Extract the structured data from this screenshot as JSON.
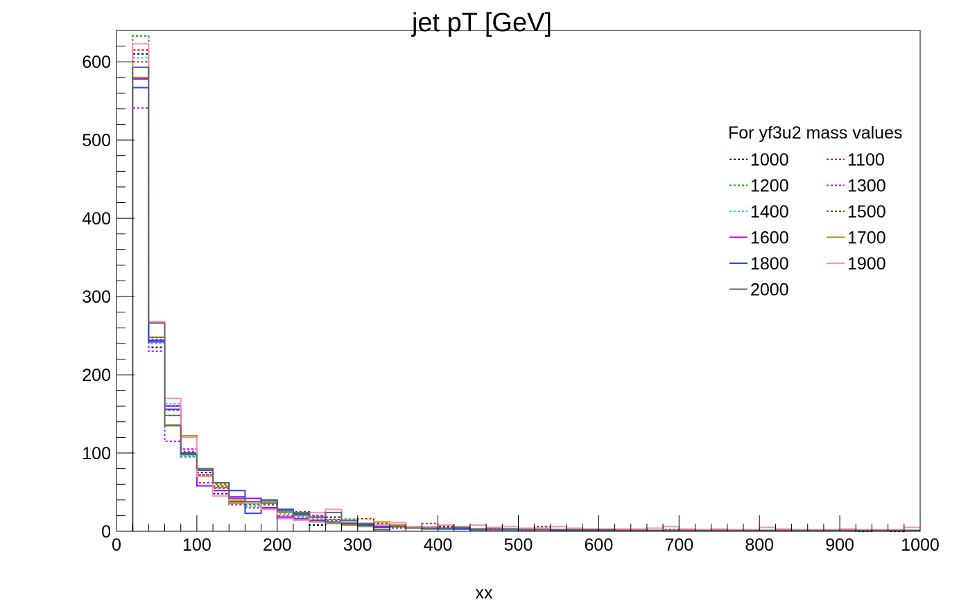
{
  "chart_data": {
    "type": "line",
    "subtype": "step-histogram",
    "title": "jet pT [GeV]",
    "xlabel": "xx",
    "ylabel": "",
    "xlim": [
      0,
      1000
    ],
    "ylim": [
      0,
      640
    ],
    "x_ticks": [
      "0",
      "100",
      "200",
      "300",
      "400",
      "500",
      "600",
      "700",
      "800",
      "900",
      "1000"
    ],
    "y_ticks": [
      "0",
      "100",
      "200",
      "300",
      "400",
      "500",
      "600"
    ],
    "grid": false,
    "legend": {
      "title": "For yf3u2 mass values",
      "placement": "top-right",
      "columns": 2
    },
    "bin_edges": [
      20,
      40,
      60,
      80,
      100,
      120,
      140,
      160,
      180,
      200,
      220,
      240,
      260,
      280,
      300,
      320,
      340,
      360,
      380,
      400,
      420,
      440,
      460,
      480,
      500,
      520,
      540,
      560,
      580,
      600,
      620,
      640,
      660,
      680,
      700,
      720,
      740,
      760,
      780,
      800,
      820,
      840,
      860,
      880,
      900,
      920,
      940,
      960,
      980,
      1000
    ],
    "series": [
      {
        "name": "1000",
        "color": "#00008b",
        "style": "dotted",
        "values": [
          610,
          235,
          160,
          100,
          75,
          48,
          40,
          35,
          28,
          18,
          22,
          8,
          18,
          14,
          10,
          5,
          6,
          5,
          3,
          6,
          4,
          2,
          3,
          2,
          2,
          2,
          1,
          2,
          1,
          1,
          2,
          1,
          1,
          1,
          1,
          1,
          1,
          1,
          1,
          1,
          1,
          1,
          1,
          1,
          1,
          0,
          1,
          0,
          1
        ]
      },
      {
        "name": "1100",
        "color": "#e00000",
        "style": "dotted",
        "values": [
          615,
          245,
          155,
          105,
          72,
          58,
          38,
          36,
          30,
          28,
          25,
          20,
          15,
          12,
          16,
          10,
          8,
          5,
          6,
          5,
          4,
          3,
          3,
          2,
          2,
          6,
          2,
          4,
          2,
          2,
          1,
          2,
          1,
          2,
          1,
          1,
          1,
          2,
          1,
          1,
          1,
          1,
          1,
          1,
          1,
          1,
          1,
          1,
          1
        ]
      },
      {
        "name": "1200",
        "color": "#00a000",
        "style": "dotted",
        "values": [
          633,
          248,
          148,
          95,
          70,
          60,
          38,
          34,
          36,
          26,
          20,
          18,
          12,
          14,
          8,
          7,
          6,
          6,
          4,
          3,
          3,
          3,
          2,
          2,
          1,
          2,
          2,
          2,
          1,
          1,
          1,
          1,
          1,
          1,
          1,
          1,
          1,
          1,
          1,
          1,
          1,
          1,
          1,
          1,
          1,
          1,
          1,
          1,
          1
        ]
      },
      {
        "name": "1300",
        "color": "#e000e0",
        "style": "dotted",
        "values": [
          541,
          230,
          115,
          105,
          62,
          55,
          34,
          30,
          28,
          20,
          18,
          20,
          12,
          10,
          8,
          6,
          4,
          5,
          4,
          4,
          3,
          3,
          2,
          2,
          2,
          2,
          2,
          1,
          1,
          1,
          1,
          1,
          1,
          1,
          1,
          1,
          1,
          1,
          1,
          1,
          1,
          1,
          1,
          1,
          1,
          1,
          1,
          1,
          1
        ]
      },
      {
        "name": "1400",
        "color": "#00d8d8",
        "style": "dotted",
        "values": [
          605,
          240,
          163,
          96,
          78,
          52,
          36,
          32,
          30,
          22,
          18,
          16,
          10,
          16,
          10,
          8,
          6,
          5,
          4,
          4,
          3,
          2,
          2,
          2,
          2,
          2,
          1,
          1,
          1,
          1,
          1,
          2,
          1,
          1,
          1,
          1,
          1,
          1,
          1,
          1,
          1,
          1,
          1,
          2,
          1,
          1,
          1,
          1,
          1
        ]
      },
      {
        "name": "1500",
        "color": "#8b4513",
        "style": "dotted",
        "values": [
          600,
          248,
          148,
          102,
          72,
          56,
          38,
          38,
          34,
          24,
          22,
          18,
          14,
          12,
          10,
          8,
          6,
          6,
          10,
          5,
          4,
          3,
          2,
          2,
          2,
          2,
          2,
          2,
          1,
          1,
          1,
          1,
          1,
          1,
          1,
          1,
          1,
          1,
          1,
          1,
          1,
          1,
          1,
          1,
          1,
          1,
          1,
          1,
          1
        ]
      },
      {
        "name": "1600",
        "color": "#b000ff",
        "style": "solid",
        "values": [
          578,
          244,
          160,
          98,
          58,
          52,
          44,
          42,
          30,
          18,
          16,
          14,
          12,
          10,
          8,
          6,
          6,
          4,
          4,
          4,
          3,
          2,
          2,
          2,
          2,
          2,
          2,
          1,
          1,
          1,
          1,
          1,
          1,
          1,
          1,
          1,
          1,
          1,
          1,
          1,
          1,
          1,
          1,
          1,
          1,
          1,
          1,
          1,
          1
        ]
      },
      {
        "name": "1700",
        "color": "#9a9a00",
        "style": "solid",
        "values": [
          580,
          268,
          136,
          122,
          80,
          56,
          36,
          36,
          38,
          24,
          20,
          12,
          10,
          8,
          6,
          12,
          8,
          5,
          4,
          3,
          3,
          2,
          2,
          2,
          2,
          2,
          1,
          1,
          1,
          1,
          1,
          1,
          1,
          1,
          1,
          2,
          1,
          1,
          1,
          1,
          1,
          1,
          1,
          1,
          1,
          1,
          1,
          1,
          1
        ]
      },
      {
        "name": "1800",
        "color": "#1e4fd8",
        "style": "solid",
        "values": [
          567,
          242,
          156,
          100,
          78,
          62,
          52,
          23,
          40,
          28,
          22,
          18,
          12,
          10,
          8,
          5,
          6,
          4,
          4,
          3,
          3,
          2,
          2,
          3,
          2,
          2,
          1,
          1,
          1,
          1,
          1,
          1,
          1,
          1,
          1,
          1,
          1,
          1,
          1,
          1,
          1,
          1,
          1,
          1,
          1,
          1,
          1,
          1,
          1
        ]
      },
      {
        "name": "1900",
        "color": "#ff90b0",
        "style": "solid",
        "values": [
          623,
          268,
          170,
          120,
          70,
          45,
          40,
          36,
          28,
          16,
          14,
          24,
          28,
          12,
          10,
          8,
          11,
          6,
          6,
          8,
          6,
          8,
          5,
          6,
          4,
          4,
          6,
          4,
          3,
          3,
          3,
          3,
          4,
          6,
          3,
          2,
          3,
          2,
          2,
          5,
          3,
          2,
          2,
          2,
          3,
          2,
          2,
          2,
          5
        ]
      },
      {
        "name": "2000",
        "color": "#666666",
        "style": "solid",
        "values": [
          593,
          266,
          135,
          98,
          80,
          62,
          42,
          38,
          36,
          26,
          24,
          18,
          24,
          14,
          10,
          2,
          6,
          4,
          3,
          4,
          5,
          3,
          2,
          2,
          2,
          2,
          2,
          2,
          2,
          2,
          1,
          1,
          1,
          1,
          1,
          1,
          1,
          1,
          1,
          1,
          1,
          1,
          1,
          1,
          1,
          1,
          1,
          1,
          1
        ]
      }
    ]
  }
}
